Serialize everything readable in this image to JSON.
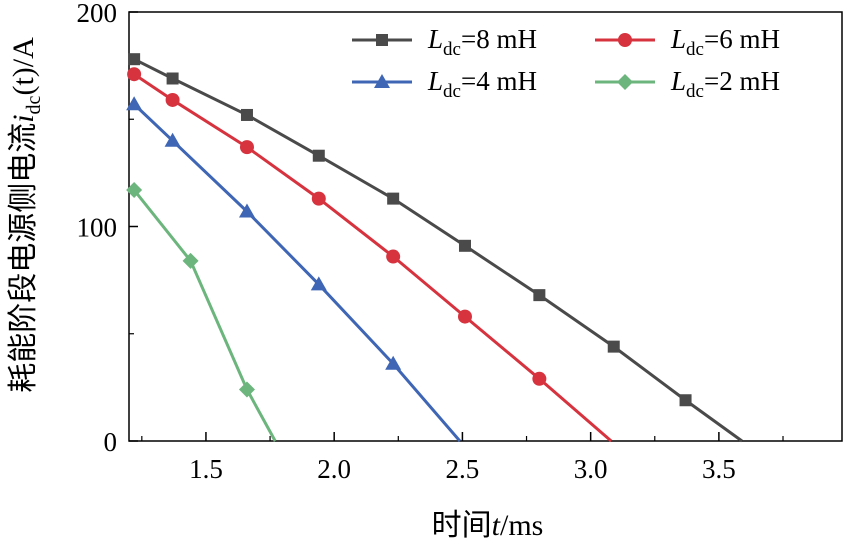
{
  "chart_data": {
    "type": "line",
    "ylabel_prefix": "耗能阶段电源侧电流",
    "ylabel_var": "i",
    "ylabel_sub": "dc",
    "ylabel_arg": "(t)",
    "ylabel_unit": "/A",
    "xlabel_prefix": "时间",
    "xlabel_var": "t",
    "xlabel_unit": "/ms",
    "xlim": [
      1.2,
      3.98
    ],
    "ylim": [
      0,
      200
    ],
    "xticks": [
      1.5,
      2.0,
      2.5,
      3.0,
      3.5
    ],
    "xtick_labels": [
      "1.5",
      "2.0",
      "2.5",
      "3.0",
      "3.5"
    ],
    "yticks": [
      0,
      100,
      200
    ],
    "ytick_labels": [
      "0",
      "100",
      "200"
    ],
    "legend_position": "top-right",
    "series": [
      {
        "name": "Ldc=8 mH",
        "label_var": "L",
        "label_sub": "dc",
        "label_val": "=8 mH",
        "color": "#4a4a4a",
        "marker": "square",
        "x": [
          1.22,
          1.37,
          1.66,
          1.94,
          2.23,
          2.51,
          2.8,
          3.09,
          3.37,
          3.59
        ],
        "y": [
          178,
          169,
          152,
          133,
          113,
          91,
          68,
          44,
          19,
          0
        ]
      },
      {
        "name": "Ldc=6 mH",
        "label_var": "L",
        "label_sub": "dc",
        "label_val": "=6 mH",
        "color": "#d6333f",
        "marker": "circle",
        "x": [
          1.22,
          1.37,
          1.66,
          1.94,
          2.23,
          2.51,
          2.8,
          3.08
        ],
        "y": [
          171,
          159,
          137,
          113,
          86,
          58,
          29,
          0
        ]
      },
      {
        "name": "Ldc=4 mH",
        "label_var": "L",
        "label_sub": "dc",
        "label_val": "=4 mH",
        "color": "#3f66b5",
        "marker": "triangle",
        "x": [
          1.22,
          1.37,
          1.66,
          1.94,
          2.23,
          2.49
        ],
        "y": [
          157,
          140,
          107,
          73,
          36,
          0
        ]
      },
      {
        "name": "Ldc=2 mH",
        "label_var": "L",
        "label_sub": "dc",
        "label_val": "=2 mH",
        "color": "#6cb57d",
        "marker": "diamond",
        "x": [
          1.22,
          1.44,
          1.66,
          1.77
        ],
        "y": [
          117,
          84,
          24,
          0
        ]
      }
    ]
  }
}
